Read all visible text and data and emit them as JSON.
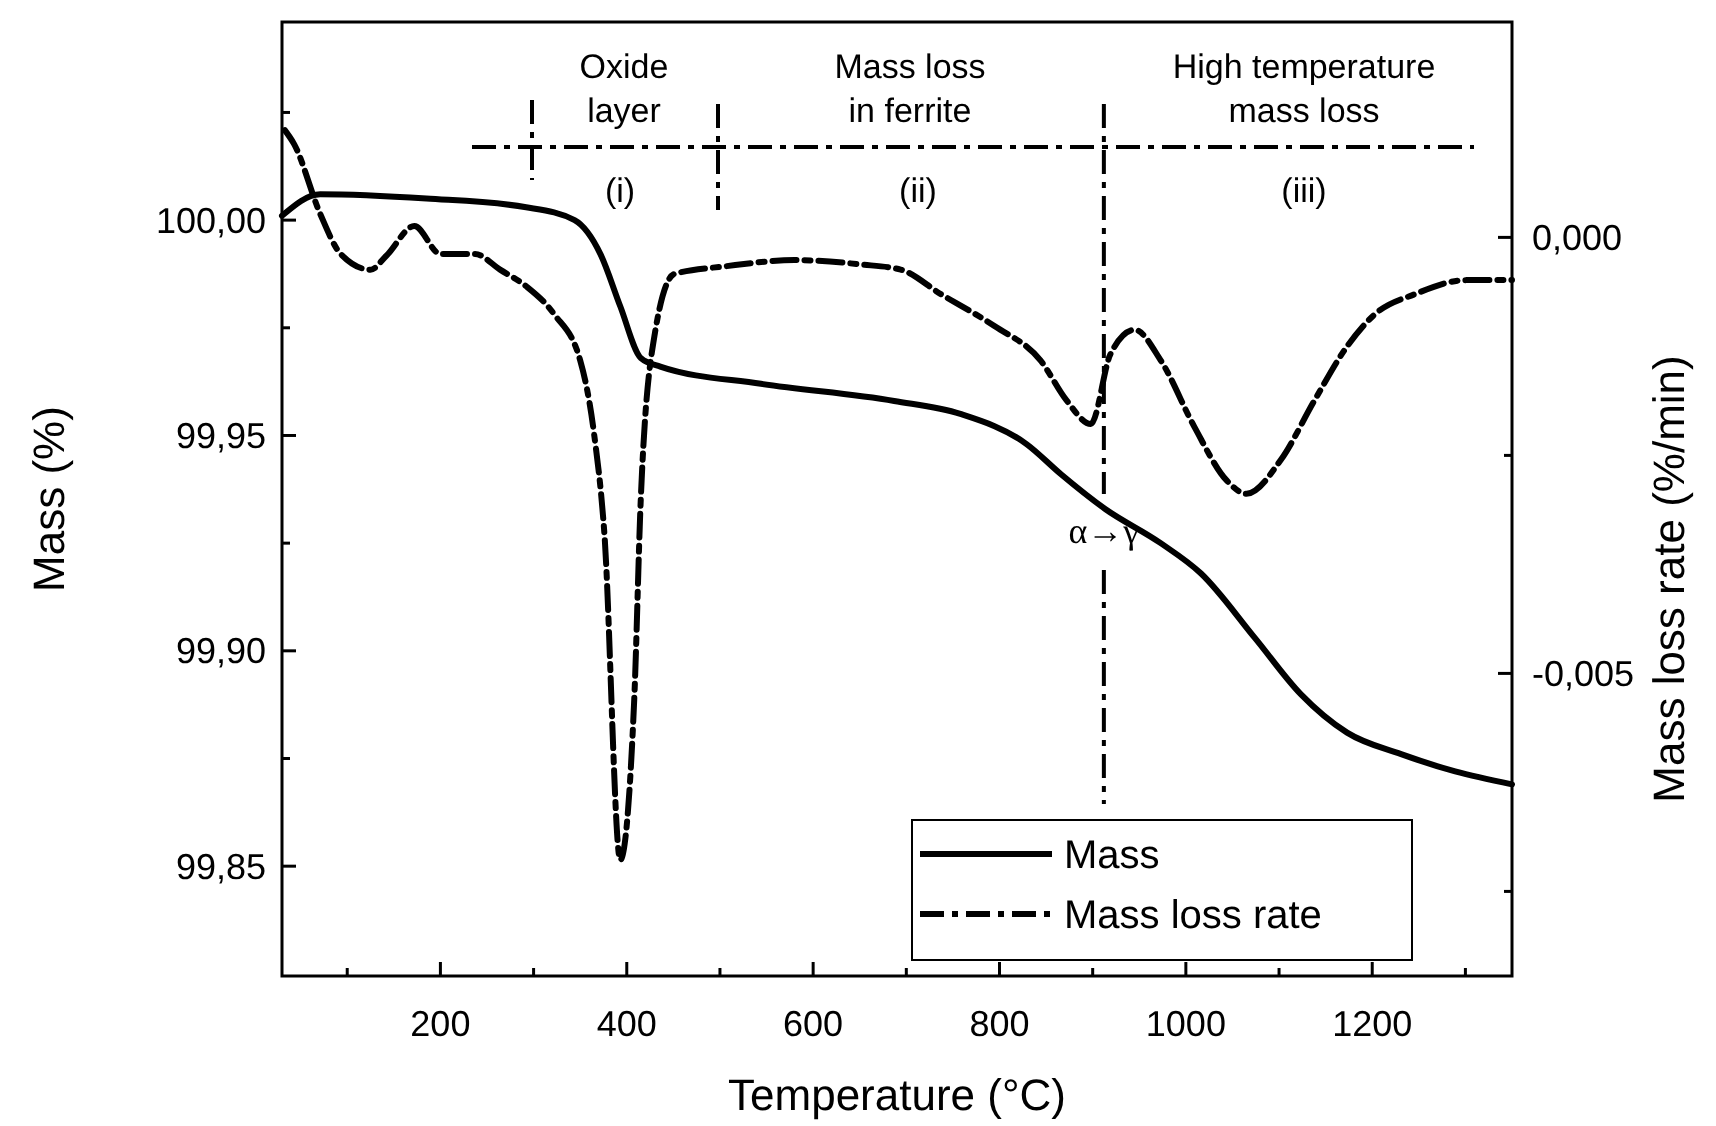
{
  "chart_data": {
    "type": "line",
    "xlabel": "Temperature (°C)",
    "ylabel": "Mass (%)",
    "y2label": "Mass loss rate (%/min)",
    "xlim": [
      30,
      1350
    ],
    "xticks": [
      {
        "value": 100,
        "label": null
      },
      {
        "value": 200,
        "label": "200"
      },
      {
        "value": 300,
        "label": null
      },
      {
        "value": 400,
        "label": "400"
      },
      {
        "value": 500,
        "label": null
      },
      {
        "value": 600,
        "label": "600"
      },
      {
        "value": 700,
        "label": null
      },
      {
        "value": 800,
        "label": "800"
      },
      {
        "value": 900,
        "label": null
      },
      {
        "value": 1000,
        "label": "1000"
      },
      {
        "value": 1100,
        "label": null
      },
      {
        "value": 1200,
        "label": "1200"
      },
      {
        "value": 1300,
        "label": null
      }
    ],
    "ylim": [
      99.8245,
      100.046
    ],
    "yticks": [
      {
        "value": 99.85,
        "label": "99,85"
      },
      {
        "value": 99.875,
        "label": null
      },
      {
        "value": 99.9,
        "label": "99,90"
      },
      {
        "value": 99.925,
        "label": null
      },
      {
        "value": 99.95,
        "label": "99,95"
      },
      {
        "value": 99.975,
        "label": null
      },
      {
        "value": 100,
        "label": "100,00"
      },
      {
        "value": 100.025,
        "label": null
      }
    ],
    "y2lim": [
      -0.00847,
      0.00247
    ],
    "y2ticks": [
      {
        "value": -0.0075,
        "label": null
      },
      {
        "value": -0.005,
        "label": "-0,005"
      },
      {
        "value": -0.0025,
        "label": null
      },
      {
        "value": 0,
        "label": "0,000"
      }
    ],
    "grid": false,
    "legend": "bottom right",
    "series": [
      {
        "name": "Mass",
        "color": "#000000",
        "line_style": "solid",
        "x": [
          30,
          71,
          185,
          292,
          344,
          372,
          393,
          415,
          436,
          544,
          687,
          758,
          829,
          866,
          913,
          973,
          1016,
          1074,
          1123,
          1173,
          1231,
          1289,
          1350
        ],
        "values": [
          100.001,
          100.006,
          100.005,
          100.003,
          100.0,
          99.992,
          99.98,
          99.968,
          99.966,
          99.962,
          99.958,
          99.955,
          99.948,
          99.941,
          99.933,
          99.925,
          99.918,
          99.903,
          99.89,
          99.881,
          99.876,
          99.872,
          99.869
        ]
      },
      {
        "name": "Mass loss rate",
        "color": "#000000",
        "axis": "y2",
        "line_style": "dashed",
        "x": [
          33,
          43,
          71,
          93,
          125,
          142,
          172,
          200,
          237,
          264,
          292,
          322,
          350,
          365,
          376,
          393,
          408,
          415,
          430,
          451,
          507,
          580,
          651,
          694,
          737,
          795,
          844,
          872,
          898,
          919,
          945,
          973,
          1009,
          1044,
          1065,
          1102,
          1138,
          1173,
          1203,
          1246,
          1301,
          1350
        ],
        "values": [
          0.00123,
          0.00107,
          0.00027,
          -0.00019,
          -0.00037,
          -0.00021,
          0.00013,
          -0.00019,
          -0.00019,
          -0.00037,
          -0.00056,
          -0.00088,
          -0.00141,
          -0.00226,
          -0.0034,
          -0.00714,
          -0.0053,
          -0.00301,
          -0.00111,
          -0.00042,
          -0.00033,
          -0.00026,
          -0.00031,
          -0.00037,
          -0.00065,
          -0.00102,
          -0.00141,
          -0.00187,
          -0.00214,
          -0.00134,
          -0.00106,
          -0.00141,
          -0.00217,
          -0.00279,
          -0.00294,
          -0.00255,
          -0.00187,
          -0.00125,
          -0.00088,
          -0.00065,
          -0.00049,
          -0.00049
        ]
      }
    ],
    "ref_lines": [
      {
        "axis": "x",
        "value": 912,
        "label": "α→γ",
        "line_style": "dashed"
      },
      {
        "axis": "y",
        "value": 100.017,
        "line_style": "dashed"
      }
    ],
    "annotations": [
      "Oxide\nlayer",
      "Mass loss\nin ferrite",
      "High temperature\nmass loss",
      "(i)",
      "(ii)",
      "(iii)"
    ]
  }
}
